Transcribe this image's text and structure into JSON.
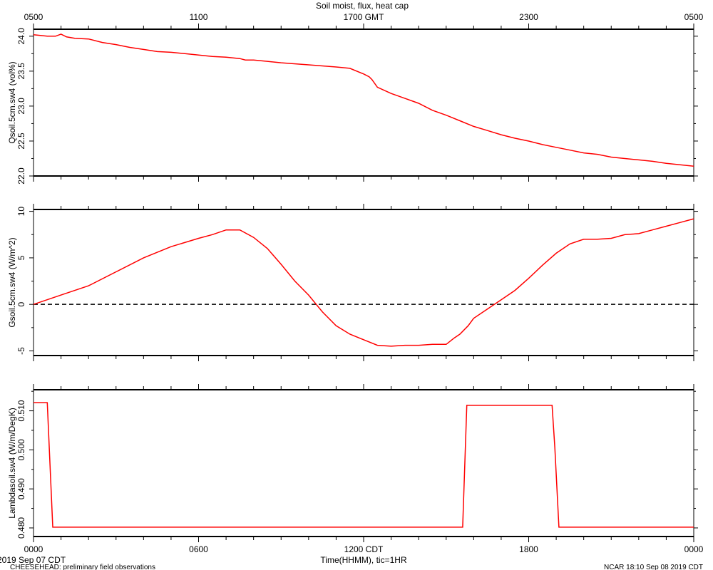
{
  "title": "Soil moist, flux, heat cap",
  "top_axis": {
    "ticks": [
      "0500",
      "1100",
      "1700 GMT",
      "2300",
      "0500"
    ]
  },
  "bottom_axis": {
    "ticks": [
      "0000",
      "0600",
      "1200 CDT",
      "1800",
      "0000"
    ],
    "label": "Time(HHMM), tic=1HR"
  },
  "footer": {
    "start_date": "2019 Sep 07 CDT",
    "note": "CHEESEHEAD: preliminary field observations",
    "credit": "NCAR 18:10 Sep 08 2019 CDT"
  },
  "colors": {
    "series": "#ff0000",
    "axis": "#000000",
    "zero_line": "#000000"
  },
  "chart_data": [
    {
      "type": "line",
      "ylabel": "Qsoil.5cm.sw4 (vol%)",
      "ylim": [
        22.0,
        24.1
      ],
      "yticks": [
        22.0,
        22.5,
        23.0,
        23.5,
        24.0
      ],
      "ytick_labels": [
        "22.0",
        "22.5",
        "23.0",
        "23.5",
        "24.0"
      ],
      "x_unit": "hours since 0000 CDT",
      "xlim": [
        0,
        24
      ],
      "series": [
        {
          "x": [
            0,
            0.5,
            0.8,
            1.0,
            1.2,
            1.5,
            2.0,
            2.5,
            3.0,
            3.5,
            4.0,
            4.5,
            5.0,
            5.5,
            6.0,
            6.5,
            7.0,
            7.5,
            7.7,
            8.0,
            8.5,
            9.0,
            10.0,
            11.0,
            11.5,
            12.0,
            12.2,
            12.3,
            12.5,
            13.0,
            13.5,
            14.0,
            14.5,
            15.0,
            15.5,
            16.0,
            16.5,
            17.0,
            17.5,
            18.0,
            18.5,
            19.0,
            19.5,
            20.0,
            20.5,
            21.0,
            21.5,
            22.0,
            22.5,
            23.0,
            23.5,
            24.0
          ],
          "y": [
            24.02,
            24.0,
            24.0,
            24.03,
            23.99,
            23.97,
            23.96,
            23.91,
            23.88,
            23.84,
            23.81,
            23.78,
            23.77,
            23.75,
            23.73,
            23.71,
            23.7,
            23.68,
            23.66,
            23.66,
            23.64,
            23.62,
            23.59,
            23.56,
            23.54,
            23.46,
            23.42,
            23.38,
            23.27,
            23.18,
            23.11,
            23.04,
            22.94,
            22.87,
            22.79,
            22.71,
            22.65,
            22.59,
            22.54,
            22.5,
            22.45,
            22.41,
            22.37,
            22.33,
            22.31,
            22.27,
            22.25,
            22.23,
            22.21,
            22.18,
            22.16,
            22.14
          ]
        }
      ]
    },
    {
      "type": "line",
      "ylabel": "Gsoil.5cm.sw4 (W/m^2)",
      "ylim": [
        -5.5,
        10.2
      ],
      "yticks": [
        -5,
        0,
        5,
        10
      ],
      "ytick_labels": [
        "-5",
        "0",
        "5",
        "10"
      ],
      "zero_line": true,
      "x_unit": "hours since 0000 CDT",
      "xlim": [
        0,
        24
      ],
      "series": [
        {
          "x": [
            0,
            1,
            2,
            3,
            4,
            5,
            6,
            6.5,
            7.0,
            7.5,
            8.0,
            8.5,
            9.0,
            9.5,
            10.0,
            10.5,
            11.0,
            11.5,
            12.0,
            12.5,
            13.0,
            13.5,
            14.0,
            14.5,
            15.0,
            15.3,
            15.5,
            15.8,
            16.0,
            16.5,
            17.0,
            17.5,
            18.0,
            18.5,
            19.0,
            19.5,
            20.0,
            20.5,
            21.0,
            21.5,
            22.0,
            22.5,
            23.0,
            23.5,
            24.0
          ],
          "y": [
            0,
            1,
            2,
            3.5,
            5,
            6.2,
            7.1,
            7.5,
            8.0,
            8.0,
            7.2,
            6.0,
            4.3,
            2.5,
            1.0,
            -0.8,
            -2.3,
            -3.2,
            -3.8,
            -4.4,
            -4.5,
            -4.4,
            -4.4,
            -4.3,
            -4.3,
            -3.6,
            -3.2,
            -2.3,
            -1.5,
            -0.5,
            0.5,
            1.5,
            2.8,
            4.2,
            5.5,
            6.5,
            7.0,
            7.0,
            7.1,
            7.5,
            7.6,
            8.0,
            8.4,
            8.8,
            9.2
          ]
        }
      ]
    },
    {
      "type": "line",
      "ylabel": "Lambdasoil.sw4 (W/m/DegK)",
      "ylim": [
        0.4778,
        0.5154
      ],
      "yticks": [
        0.48,
        0.49,
        0.5,
        0.51
      ],
      "ytick_labels": [
        "0.480",
        "0.490",
        "0.500",
        "0.510"
      ],
      "x_unit": "hours since 0000 CDT",
      "xlim": [
        0,
        24
      ],
      "series": [
        {
          "x": [
            0,
            0.5,
            0.7,
            15.6,
            15.75,
            18.85,
            18.95,
            19.1,
            24.0
          ],
          "y": [
            0.5121,
            0.5121,
            0.4802,
            0.4802,
            0.5114,
            0.5114,
            0.5005,
            0.4802,
            0.4802
          ]
        }
      ]
    }
  ]
}
